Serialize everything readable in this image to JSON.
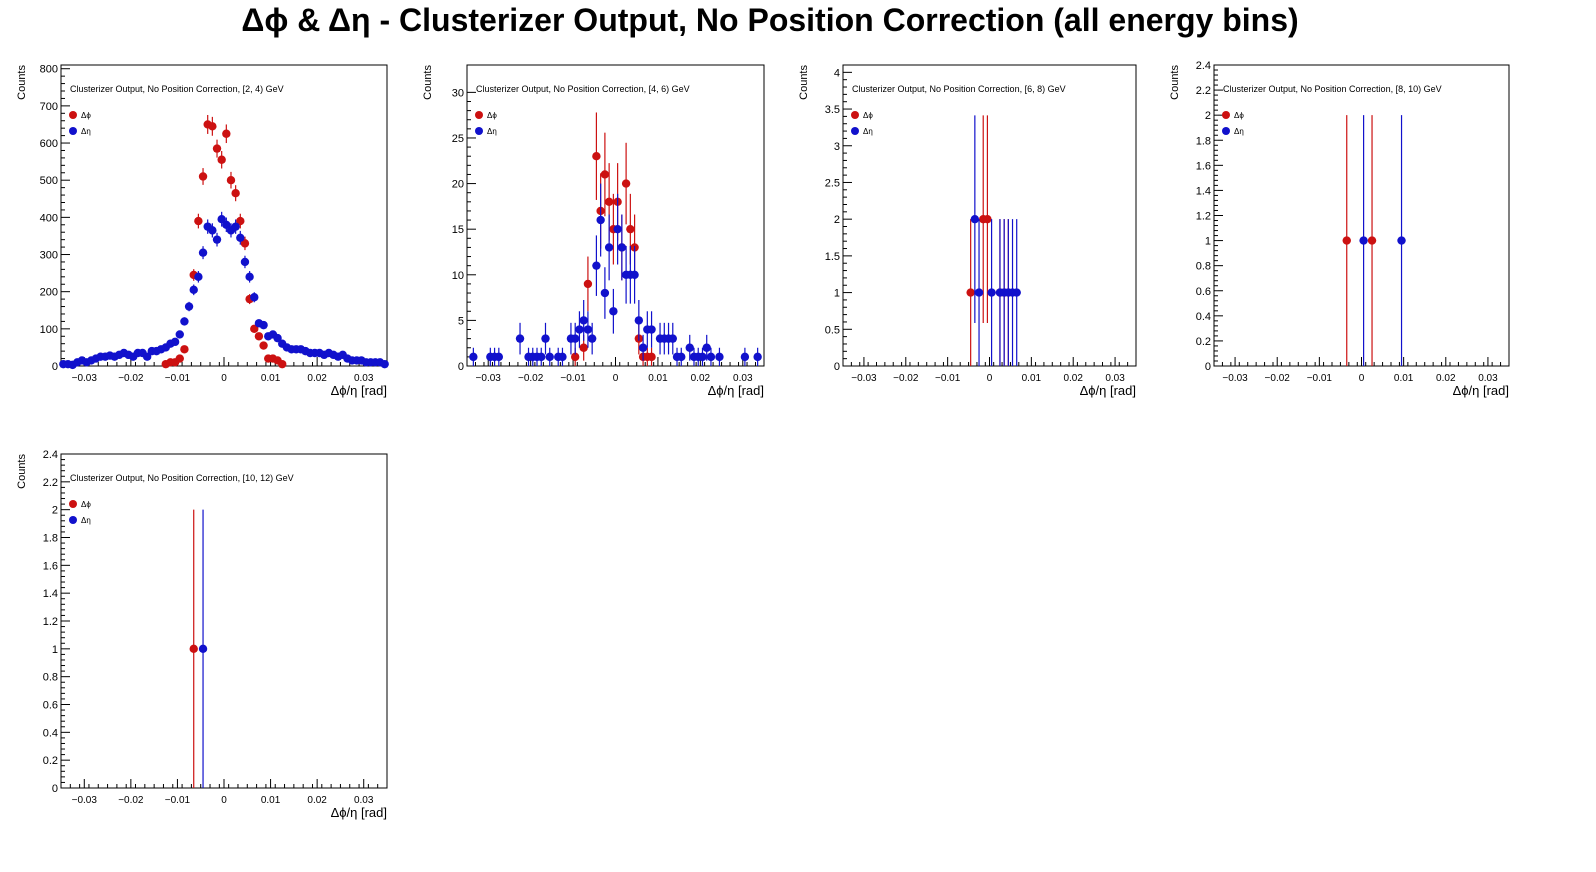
{
  "title": "Δϕ & Δη  -  Clusterizer Output, No Position Correction  (all energy bins)",
  "colors": {
    "dphi": "#cc1111",
    "deta": "#1111cc",
    "axis": "#000000"
  },
  "chart_data": [
    {
      "type": "scatter",
      "title": "Clusterizer Output, No Position Correction, [2, 4) GeV",
      "xlabel": "Δϕ/η  [rad]",
      "ylabel": "Counts",
      "xlim": [
        -0.035,
        0.035
      ],
      "ylim": [
        0,
        810
      ],
      "xticks": [
        -0.03,
        -0.02,
        -0.01,
        0,
        0.01,
        0.02,
        0.03
      ],
      "xtick_labels": [
        "−0.03",
        "−0.02",
        "−0.01",
        "0",
        "0.01",
        "0.02",
        "0.03"
      ],
      "yticks": [
        0,
        100,
        200,
        300,
        400,
        500,
        600,
        700,
        800
      ],
      "ytick_labels": [
        "0",
        "100",
        "200",
        "300",
        "400",
        "500",
        "600",
        "700",
        "800"
      ],
      "legend": [
        "Δϕ",
        "Δη"
      ],
      "legend_position": "top-left",
      "series": [
        {
          "name": "Δϕ",
          "color": "#cc1111",
          "points": [
            [
              -0.0125,
              5
            ],
            [
              -0.0115,
              10
            ],
            [
              -0.0105,
              10
            ],
            [
              -0.0095,
              20
            ],
            [
              -0.0085,
              45
            ],
            [
              -0.0065,
              245
            ],
            [
              -0.0055,
              390
            ],
            [
              -0.0045,
              510
            ],
            [
              -0.0035,
              650
            ],
            [
              -0.0025,
              645
            ],
            [
              -0.0015,
              585
            ],
            [
              -0.0005,
              555
            ],
            [
              0.0005,
              625
            ],
            [
              0.0015,
              500
            ],
            [
              0.0025,
              465
            ],
            [
              0.0035,
              390
            ],
            [
              0.0045,
              330
            ],
            [
              0.0055,
              180
            ],
            [
              0.0065,
              100
            ],
            [
              0.0075,
              80
            ],
            [
              0.0085,
              55
            ],
            [
              0.0095,
              20
            ],
            [
              0.0105,
              20
            ],
            [
              0.0115,
              15
            ],
            [
              0.0125,
              5
            ]
          ]
        },
        {
          "name": "Δη",
          "color": "#1111cc",
          "points": [
            [
              -0.0345,
              5
            ],
            [
              -0.0335,
              5
            ],
            [
              -0.0325,
              3
            ],
            [
              -0.0315,
              10
            ],
            [
              -0.0305,
              15
            ],
            [
              -0.0295,
              10
            ],
            [
              -0.0285,
              15
            ],
            [
              -0.0275,
              20
            ],
            [
              -0.0265,
              25
            ],
            [
              -0.0255,
              25
            ],
            [
              -0.0245,
              28
            ],
            [
              -0.0235,
              25
            ],
            [
              -0.0225,
              30
            ],
            [
              -0.0215,
              35
            ],
            [
              -0.0205,
              30
            ],
            [
              -0.0195,
              25
            ],
            [
              -0.0185,
              35
            ],
            [
              -0.0175,
              35
            ],
            [
              -0.0165,
              25
            ],
            [
              -0.0155,
              40
            ],
            [
              -0.0145,
              40
            ],
            [
              -0.0135,
              45
            ],
            [
              -0.0125,
              50
            ],
            [
              -0.0115,
              60
            ],
            [
              -0.0105,
              65
            ],
            [
              -0.0095,
              85
            ],
            [
              -0.0085,
              120
            ],
            [
              -0.0075,
              160
            ],
            [
              -0.0065,
              205
            ],
            [
              -0.0055,
              240
            ],
            [
              -0.0045,
              305
            ],
            [
              -0.0035,
              375
            ],
            [
              -0.0025,
              365
            ],
            [
              -0.0015,
              340
            ],
            [
              -0.0005,
              395
            ],
            [
              0.0005,
              380
            ],
            [
              0.0015,
              365
            ],
            [
              0.0025,
              375
            ],
            [
              0.0035,
              345
            ],
            [
              0.0045,
              280
            ],
            [
              0.0055,
              240
            ],
            [
              0.0065,
              185
            ],
            [
              0.0075,
              115
            ],
            [
              0.0085,
              110
            ],
            [
              0.0095,
              80
            ],
            [
              0.0105,
              85
            ],
            [
              0.0115,
              75
            ],
            [
              0.0125,
              60
            ],
            [
              0.0135,
              50
            ],
            [
              0.0145,
              45
            ],
            [
              0.0155,
              45
            ],
            [
              0.0165,
              45
            ],
            [
              0.0175,
              40
            ],
            [
              0.0185,
              35
            ],
            [
              0.0195,
              35
            ],
            [
              0.0205,
              35
            ],
            [
              0.0215,
              30
            ],
            [
              0.0225,
              35
            ],
            [
              0.0235,
              30
            ],
            [
              0.0245,
              25
            ],
            [
              0.0255,
              30
            ],
            [
              0.0265,
              20
            ],
            [
              0.0275,
              15
            ],
            [
              0.0285,
              15
            ],
            [
              0.0295,
              15
            ],
            [
              0.0305,
              10
            ],
            [
              0.0315,
              10
            ],
            [
              0.0325,
              10
            ],
            [
              0.0335,
              10
            ],
            [
              0.0345,
              5
            ]
          ]
        }
      ]
    },
    {
      "type": "scatter",
      "title": "Clusterizer Output, No Position Correction, [4, 6) GeV",
      "xlabel": "Δϕ/η  [rad]",
      "ylabel": "Counts",
      "xlim": [
        -0.035,
        0.035
      ],
      "ylim": [
        0,
        33
      ],
      "xticks": [
        -0.03,
        -0.02,
        -0.01,
        0,
        0.01,
        0.02,
        0.03
      ],
      "xtick_labels": [
        "−0.03",
        "−0.02",
        "−0.01",
        "0",
        "0.01",
        "0.02",
        "0.03"
      ],
      "yticks": [
        0,
        5,
        10,
        15,
        20,
        25,
        30
      ],
      "ytick_labels": [
        "0",
        "5",
        "10",
        "15",
        "20",
        "25",
        "30"
      ],
      "legend": [
        "Δϕ",
        "Δη"
      ],
      "legend_position": "top-left",
      "series": [
        {
          "name": "Δϕ",
          "color": "#cc1111",
          "points": [
            [
              -0.0095,
              1
            ],
            [
              -0.0075,
              2
            ],
            [
              -0.0065,
              9
            ],
            [
              -0.0045,
              23
            ],
            [
              -0.0035,
              17
            ],
            [
              -0.0025,
              21
            ],
            [
              -0.0015,
              18
            ],
            [
              -0.0005,
              15
            ],
            [
              0.0005,
              18
            ],
            [
              0.0015,
              13
            ],
            [
              0.0025,
              20
            ],
            [
              0.0035,
              15
            ],
            [
              0.0045,
              13
            ],
            [
              0.0055,
              3
            ],
            [
              0.0065,
              1
            ],
            [
              0.0075,
              1
            ],
            [
              0.0085,
              1
            ]
          ]
        },
        {
          "name": "Δη",
          "color": "#1111cc",
          "points": [
            [
              -0.0335,
              1
            ],
            [
              -0.0295,
              1
            ],
            [
              -0.0285,
              1
            ],
            [
              -0.0275,
              1
            ],
            [
              -0.0225,
              3
            ],
            [
              -0.0205,
              1
            ],
            [
              -0.0195,
              1
            ],
            [
              -0.0185,
              1
            ],
            [
              -0.0175,
              1
            ],
            [
              -0.0165,
              3
            ],
            [
              -0.0155,
              1
            ],
            [
              -0.0135,
              1
            ],
            [
              -0.0125,
              1
            ],
            [
              -0.0105,
              3
            ],
            [
              -0.0095,
              3
            ],
            [
              -0.0085,
              4
            ],
            [
              -0.0075,
              5
            ],
            [
              -0.0065,
              4
            ],
            [
              -0.0055,
              3
            ],
            [
              -0.0045,
              11
            ],
            [
              -0.0035,
              16
            ],
            [
              -0.0025,
              8
            ],
            [
              -0.0015,
              13
            ],
            [
              -0.0005,
              6
            ],
            [
              0.0005,
              15
            ],
            [
              0.0015,
              13
            ],
            [
              0.0025,
              10
            ],
            [
              0.0035,
              10
            ],
            [
              0.0045,
              10
            ],
            [
              0.0055,
              5
            ],
            [
              0.0065,
              2
            ],
            [
              0.0075,
              4
            ],
            [
              0.0085,
              4
            ],
            [
              0.0105,
              3
            ],
            [
              0.0115,
              3
            ],
            [
              0.0125,
              3
            ],
            [
              0.0135,
              3
            ],
            [
              0.0145,
              1
            ],
            [
              0.0155,
              1
            ],
            [
              0.0175,
              2
            ],
            [
              0.0185,
              1
            ],
            [
              0.0195,
              1
            ],
            [
              0.0205,
              1
            ],
            [
              0.0215,
              2
            ],
            [
              0.0225,
              1
            ],
            [
              0.0245,
              1
            ],
            [
              0.0305,
              1
            ],
            [
              0.0335,
              1
            ]
          ]
        }
      ]
    },
    {
      "type": "scatter",
      "title": "Clusterizer Output, No Position Correction, [6, 8) GeV",
      "xlabel": "Δϕ/η  [rad]",
      "ylabel": "Counts",
      "xlim": [
        -0.035,
        0.035
      ],
      "ylim": [
        0,
        4.1
      ],
      "xticks": [
        -0.03,
        -0.02,
        -0.01,
        0,
        0.01,
        0.02,
        0.03
      ],
      "xtick_labels": [
        "−0.03",
        "−0.02",
        "−0.01",
        "0",
        "0.01",
        "0.02",
        "0.03"
      ],
      "yticks": [
        0,
        0.5,
        1,
        1.5,
        2,
        2.5,
        3,
        3.5,
        4
      ],
      "ytick_labels": [
        "0",
        "0.5",
        "1",
        "1.5",
        "2",
        "2.5",
        "3",
        "3.5",
        "4"
      ],
      "legend": [
        "Δϕ",
        "Δη"
      ],
      "legend_position": "top-left",
      "series": [
        {
          "name": "Δϕ",
          "color": "#cc1111",
          "points": [
            [
              -0.0045,
              1
            ],
            [
              -0.0015,
              2
            ],
            [
              -0.0005,
              2
            ],
            [
              0.0025,
              1
            ],
            [
              0.0035,
              1
            ],
            [
              0.0045,
              1
            ]
          ]
        },
        {
          "name": "Δη",
          "color": "#1111cc",
          "points": [
            [
              -0.0035,
              2
            ],
            [
              -0.0025,
              1
            ],
            [
              0.0005,
              1
            ],
            [
              0.0025,
              1
            ],
            [
              0.0035,
              1
            ],
            [
              0.0045,
              1
            ],
            [
              0.0055,
              1
            ],
            [
              0.0065,
              1
            ]
          ]
        }
      ]
    },
    {
      "type": "scatter",
      "title": "Clusterizer Output, No Position Correction, [8, 10) GeV",
      "xlabel": "Δϕ/η  [rad]",
      "ylabel": "Counts",
      "xlim": [
        -0.035,
        0.035
      ],
      "ylim": [
        0,
        2.4
      ],
      "xticks": [
        -0.03,
        -0.02,
        -0.01,
        0,
        0.01,
        0.02,
        0.03
      ],
      "xtick_labels": [
        "−0.03",
        "−0.02",
        "−0.01",
        "0",
        "0.01",
        "0.02",
        "0.03"
      ],
      "yticks": [
        0,
        0.2,
        0.4,
        0.6,
        0.8,
        1,
        1.2,
        1.4,
        1.6,
        1.8,
        2,
        2.2,
        2.4
      ],
      "ytick_labels": [
        "0",
        "0.2",
        "0.4",
        "0.6",
        "0.8",
        "1",
        "1.2",
        "1.4",
        "1.6",
        "1.8",
        "2",
        "2.2",
        "2.4"
      ],
      "legend": [
        "Δϕ",
        "Δη"
      ],
      "legend_position": "top-left",
      "series": [
        {
          "name": "Δϕ",
          "color": "#cc1111",
          "points": [
            [
              -0.0035,
              1
            ],
            [
              0.0025,
              1
            ]
          ]
        },
        {
          "name": "Δη",
          "color": "#1111cc",
          "points": [
            [
              0.0005,
              1
            ],
            [
              0.0095,
              1
            ]
          ]
        }
      ]
    },
    {
      "type": "scatter",
      "title": "Clusterizer Output, No Position Correction, [10, 12) GeV",
      "xlabel": "Δϕ/η  [rad]",
      "ylabel": "Counts",
      "xlim": [
        -0.035,
        0.035
      ],
      "ylim": [
        0,
        2.4
      ],
      "xticks": [
        -0.03,
        -0.02,
        -0.01,
        0,
        0.01,
        0.02,
        0.03
      ],
      "xtick_labels": [
        "−0.03",
        "−0.02",
        "−0.01",
        "0",
        "0.01",
        "0.02",
        "0.03"
      ],
      "yticks": [
        0,
        0.2,
        0.4,
        0.6,
        0.8,
        1,
        1.2,
        1.4,
        1.6,
        1.8,
        2,
        2.2,
        2.4
      ],
      "ytick_labels": [
        "0",
        "0.2",
        "0.4",
        "0.6",
        "0.8",
        "1",
        "1.2",
        "1.4",
        "1.6",
        "1.8",
        "2",
        "2.2",
        "2.4"
      ],
      "legend": [
        "Δϕ",
        "Δη"
      ],
      "legend_position": "top-left",
      "series": [
        {
          "name": "Δϕ",
          "color": "#cc1111",
          "points": [
            [
              -0.0065,
              1
            ]
          ]
        },
        {
          "name": "Δη",
          "color": "#1111cc",
          "points": [
            [
              -0.0045,
              1
            ]
          ]
        }
      ]
    }
  ]
}
